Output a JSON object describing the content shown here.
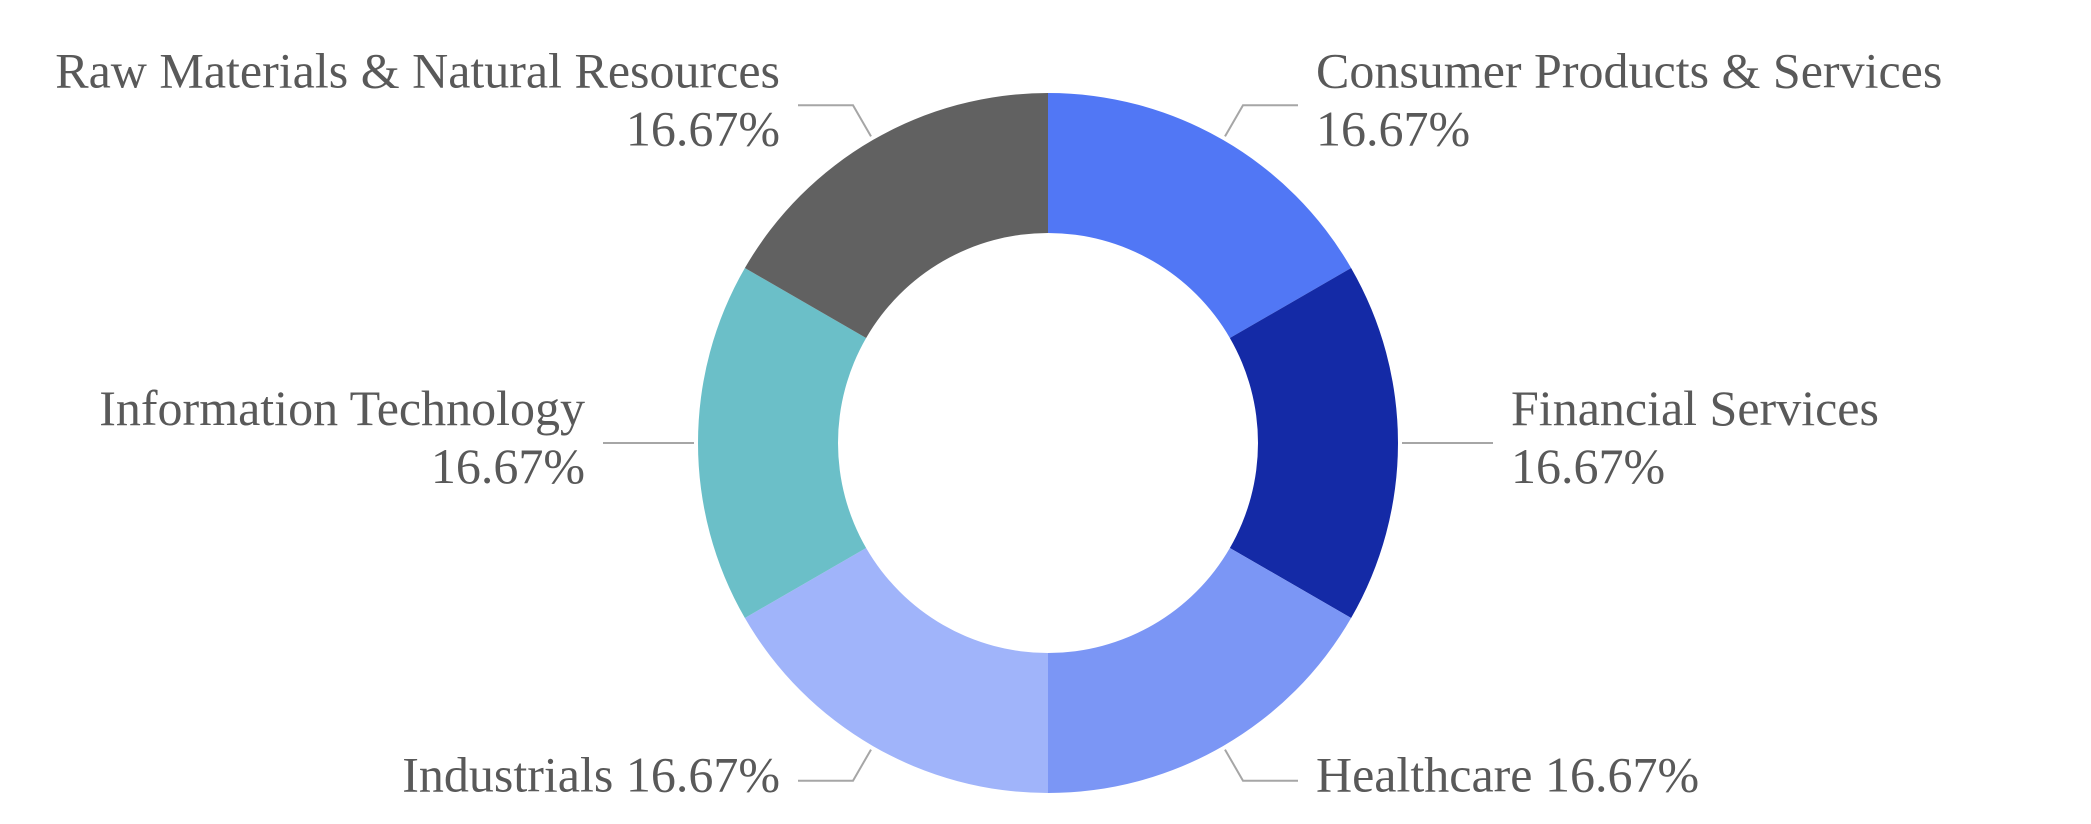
{
  "chart_data": {
    "type": "pie",
    "categories": [
      "Consumer Products & Services",
      "Financial Services",
      "Healthcare",
      "Industrials",
      "Information Technology",
      "Raw Materials & Natural Resources"
    ],
    "values": [
      16.67,
      16.67,
      16.67,
      16.67,
      16.67,
      16.67
    ],
    "value_labels": [
      "16.67%",
      "16.67%",
      "16.67%",
      "16.67%",
      "16.67%",
      "16.67%"
    ],
    "colors": [
      "#5177f5",
      "#142aa6",
      "#7b96f5",
      "#a0b4fa",
      "#6bbfc8",
      "#616161"
    ],
    "hole": true
  }
}
